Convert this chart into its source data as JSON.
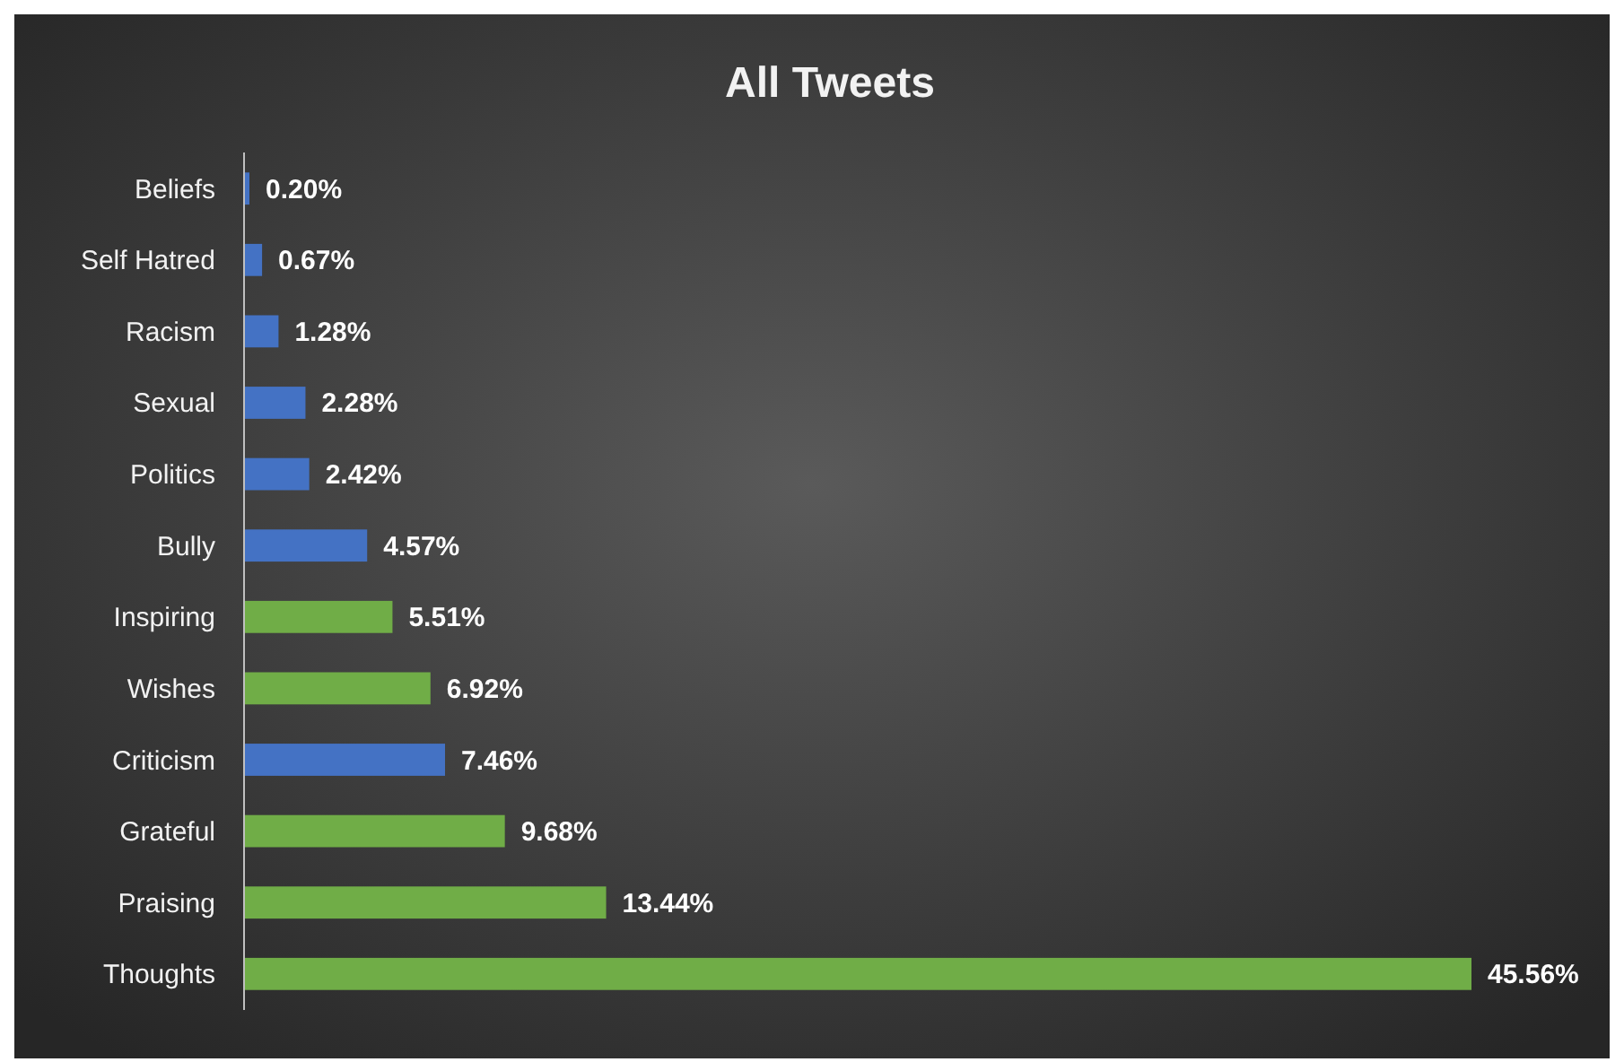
{
  "chart_data": {
    "type": "bar",
    "orientation": "horizontal",
    "title": "All Tweets",
    "categories": [
      "Beliefs",
      "Self Hatred",
      "Racism",
      "Sexual",
      "Politics",
      "Bully",
      "Inspiring",
      "Wishes",
      "Criticism",
      "Grateful",
      "Praising",
      "Thoughts"
    ],
    "values": [
      0.2,
      0.67,
      1.28,
      2.28,
      2.42,
      4.57,
      5.51,
      6.92,
      7.46,
      9.68,
      13.44,
      45.56
    ],
    "value_labels": [
      "0.20%",
      "0.67%",
      "1.28%",
      "2.28%",
      "2.42%",
      "4.57%",
      "5.51%",
      "6.92%",
      "7.46%",
      "9.68%",
      "13.44%",
      "45.56%"
    ],
    "colors": [
      "#4472c4",
      "#4472c4",
      "#4472c4",
      "#4472c4",
      "#4472c4",
      "#4472c4",
      "#70ad47",
      "#70ad47",
      "#4472c4",
      "#70ad47",
      "#70ad47",
      "#70ad47"
    ]
  }
}
